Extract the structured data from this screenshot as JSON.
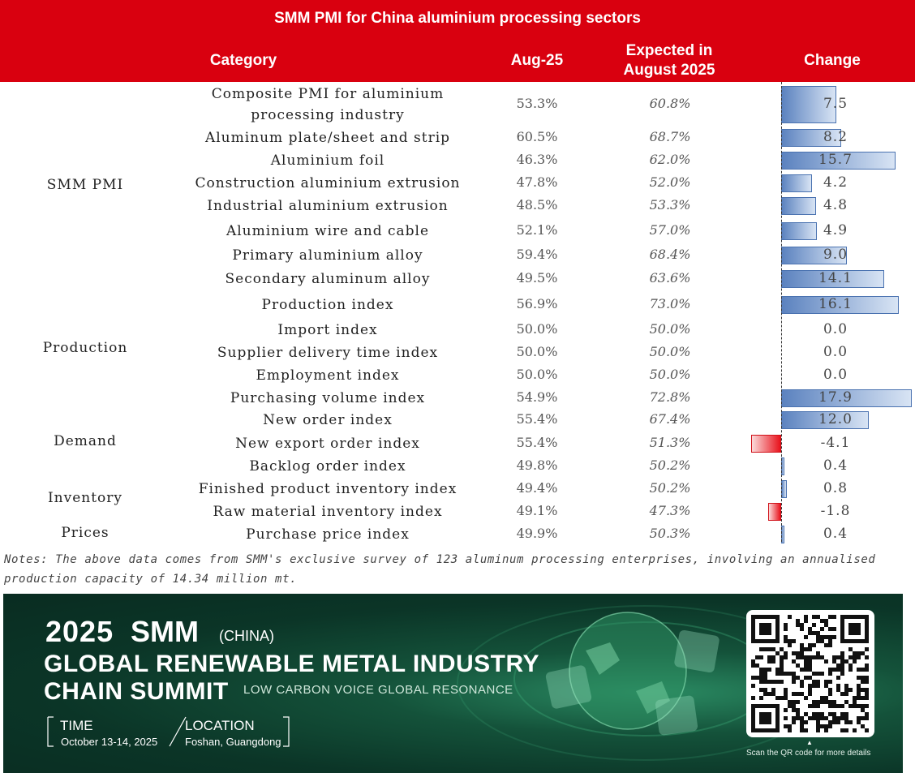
{
  "title": "SMM PMI for China aluminium processing sectors",
  "headers": {
    "category": "Category",
    "aug": "Aug-25",
    "expected_line1": "Expected in",
    "expected_line2": "August 2025",
    "change": "Change"
  },
  "groups": [
    "SMM PMI",
    "Production",
    "Demand",
    "Inventory",
    "Prices"
  ],
  "chart_data": {
    "type": "bar",
    "title": "SMM PMI for China aluminium processing sectors",
    "categories": [
      "Composite PMI for aluminium processing industry",
      "Aluminum plate/sheet and strip",
      "Aluminium foil",
      "Construction aluminium extrusion",
      "Industrial aluminium extrusion",
      "Aluminium wire and cable",
      "Primary aluminium alloy",
      "Secondary aluminum alloy",
      "Production index",
      "Import index",
      "Supplier delivery time index",
      "Employment index",
      "Purchasing volume index",
      "New order index",
      "New export order index",
      "Backlog order index",
      "Finished product inventory index",
      "Raw material inventory index",
      "Purchase price index"
    ],
    "category_lines": [
      [
        "Composite PMI for aluminium",
        "processing industry"
      ],
      [
        "Aluminum plate/sheet and strip"
      ],
      [
        "Aluminium foil"
      ],
      [
        "Construction aluminium extrusion"
      ],
      [
        "Industrial aluminium extrusion"
      ],
      [
        "Aluminium wire and cable"
      ],
      [
        "Primary aluminium alloy"
      ],
      [
        "Secondary aluminum alloy"
      ],
      [
        "Production index"
      ],
      [
        "Import index"
      ],
      [
        "Supplier delivery time index"
      ],
      [
        "Employment index"
      ],
      [
        "Purchasing volume index"
      ],
      [
        "New order index"
      ],
      [
        "New export order index"
      ],
      [
        "Backlog order index"
      ],
      [
        "Finished product inventory index"
      ],
      [
        "Raw material inventory index"
      ],
      [
        "Purchase price index"
      ]
    ],
    "aug_25": [
      "53.3%",
      "60.5%",
      "46.3%",
      "47.8%",
      "48.5%",
      "52.1%",
      "59.4%",
      "49.5%",
      "56.9%",
      "50.0%",
      "50.0%",
      "50.0%",
      "54.9%",
      "55.4%",
      "55.4%",
      "49.8%",
      "49.4%",
      "49.1%",
      "49.9%"
    ],
    "expected": [
      "60.8%",
      "68.7%",
      "62.0%",
      "52.0%",
      "53.3%",
      "57.0%",
      "68.4%",
      "63.6%",
      "73.0%",
      "50.0%",
      "50.0%",
      "50.0%",
      "72.8%",
      "67.4%",
      "51.3%",
      "50.2%",
      "50.2%",
      "47.3%",
      "50.3%"
    ],
    "change_labels": [
      "7.5",
      "8.2",
      "15.7",
      "4.2",
      "4.8",
      "4.9",
      "9.0",
      "14.1",
      "16.1",
      "0.0",
      "0.0",
      "0.0",
      "17.9",
      "12.0",
      "-4.1",
      "0.4",
      "0.8",
      "-1.8",
      "0.4"
    ],
    "change": [
      7.5,
      8.2,
      15.7,
      4.2,
      4.8,
      4.9,
      9.0,
      14.1,
      16.1,
      0.0,
      0.0,
      0.0,
      17.9,
      12.0,
      -4.1,
      0.4,
      0.8,
      -1.8,
      0.4
    ],
    "positive_color": "#5b82bf",
    "negative_color": "#e8121c"
  },
  "notes_line1": "Notes: The above data comes from SMM's exclusive survey of 123 aluminum processing enterprises, involving an annualised",
  "notes_line2": "production capacity of 14.34 million mt.",
  "banner": {
    "year": "2025",
    "brand": "SMM",
    "country": "(CHINA)",
    "title_line1": "GLOBAL RENEWABLE METAL INDUSTRY",
    "title_line2": "CHAIN SUMMIT",
    "slogan": "LOW CARBON VOICE GLOBAL RESONANCE",
    "time_label": "TIME",
    "time_value": "October 13-14, 2025",
    "location_label": "LOCATION",
    "location_value": "Foshan, Guangdong",
    "qr_caption": "Scan the QR code for more details"
  },
  "colors": {
    "header_red": "#d9000f",
    "banner_green": "#0b3527"
  }
}
